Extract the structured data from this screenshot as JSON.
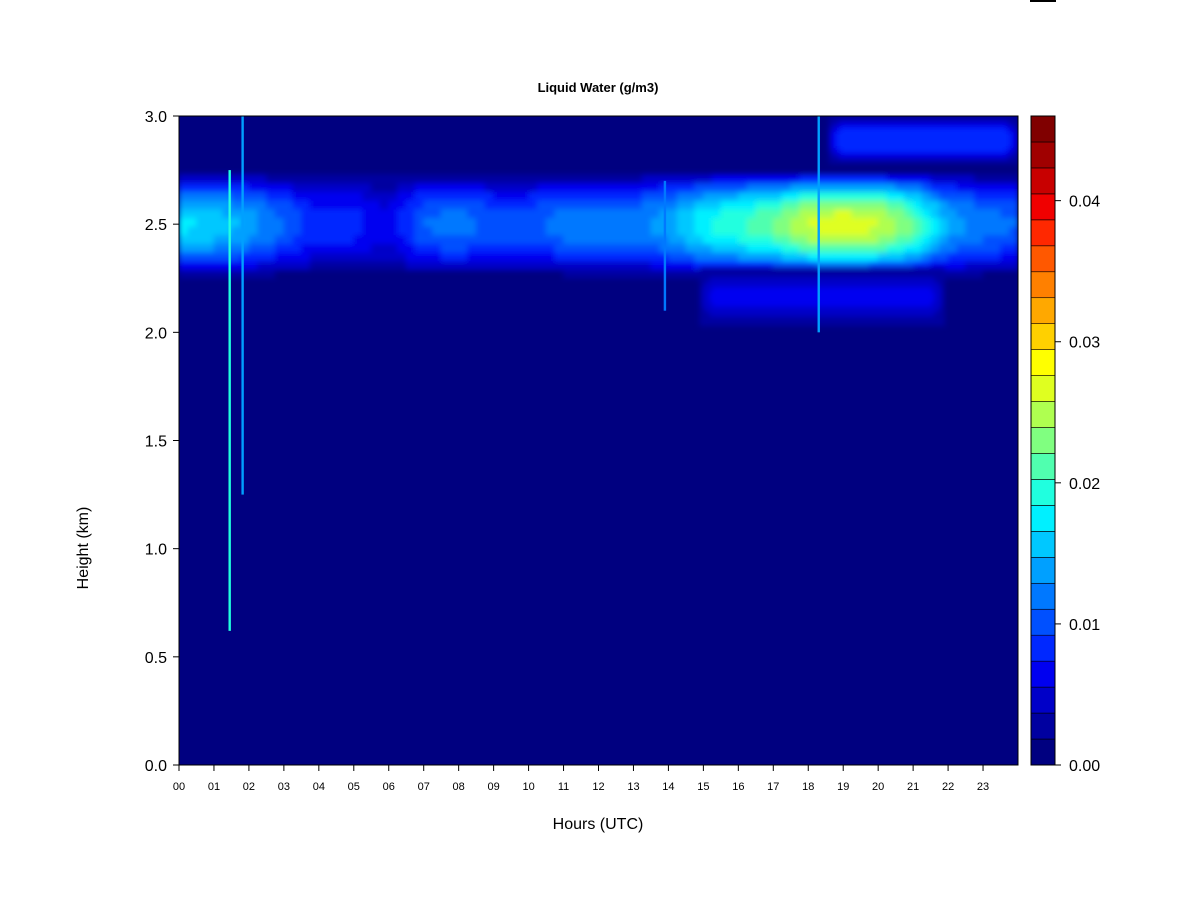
{
  "chart_data": {
    "type": "heatmap",
    "title": "Liquid Water (g/m3)",
    "xlabel": "Hours (UTC)",
    "ylabel": "Height (km)",
    "xlim": [
      0,
      24
    ],
    "ylim": [
      0,
      3.0
    ],
    "x_ticks": [
      "00",
      "01",
      "02",
      "03",
      "04",
      "05",
      "06",
      "07",
      "08",
      "09",
      "10",
      "11",
      "12",
      "13",
      "14",
      "15",
      "16",
      "17",
      "18",
      "19",
      "20",
      "21",
      "22",
      "23"
    ],
    "y_ticks": [
      "0.0",
      "0.5",
      "1.0",
      "1.5",
      "2.0",
      "2.5",
      "3.0"
    ],
    "colorbar": {
      "range": [
        0,
        0.046
      ],
      "ticks": [
        "0.00",
        "0.01",
        "0.02",
        "0.03",
        "0.04"
      ],
      "colors": [
        "#000080",
        "#0000A0",
        "#0000C8",
        "#0000F0",
        "#0028FF",
        "#0050FF",
        "#0078FF",
        "#00A0FF",
        "#00C8FF",
        "#00F0FF",
        "#20FFDF",
        "#50FFAF",
        "#80FF80",
        "#AFFF50",
        "#DFFF20",
        "#FFFF00",
        "#FFD000",
        "#FFA800",
        "#FF8000",
        "#FF5800",
        "#FF2800",
        "#F00000",
        "#C80000",
        "#A00000",
        "#800000"
      ]
    },
    "background_value": 0.0,
    "cloud_layers": [
      {
        "name": "main layer",
        "x_range": [
          0,
          24
        ],
        "y_range": [
          2.25,
          2.73
        ],
        "peak_height": 2.5,
        "intensity": [
          [
            0,
            0.017
          ],
          [
            1,
            0.016
          ],
          [
            2,
            0.014
          ],
          [
            3,
            0.011
          ],
          [
            4,
            0.008
          ],
          [
            5,
            0.008
          ],
          [
            6,
            0.006
          ],
          [
            7,
            0.011
          ],
          [
            8,
            0.012
          ],
          [
            9,
            0.01
          ],
          [
            10,
            0.01
          ],
          [
            11,
            0.012
          ],
          [
            12,
            0.012
          ],
          [
            13,
            0.012
          ],
          [
            14,
            0.014
          ],
          [
            15,
            0.018
          ],
          [
            16,
            0.02
          ],
          [
            17,
            0.022
          ],
          [
            18,
            0.026
          ],
          [
            19,
            0.027
          ],
          [
            20,
            0.026
          ],
          [
            21,
            0.022
          ],
          [
            22,
            0.014
          ],
          [
            23,
            0.012
          ],
          [
            24,
            0.011
          ]
        ]
      },
      {
        "name": "lower extension",
        "x_range": [
          14.9,
          21.9
        ],
        "y_range": [
          2.03,
          2.3
        ],
        "peak_value": 0.006
      },
      {
        "name": "upper layer",
        "x_range": [
          18.6,
          24
        ],
        "y_range": [
          2.78,
          3.0
        ],
        "peak_value": 0.009
      }
    ],
    "spikes": [
      {
        "x": 1.45,
        "y_range": [
          0.62,
          2.75
        ],
        "value": 0.02
      },
      {
        "x": 1.82,
        "y_range": [
          1.25,
          3.0
        ],
        "value": 0.014
      },
      {
        "x": 13.9,
        "y_range": [
          2.1,
          2.7
        ],
        "value": 0.012
      },
      {
        "x": 18.3,
        "y_range": [
          2.0,
          3.0
        ],
        "value": 0.014
      }
    ]
  }
}
